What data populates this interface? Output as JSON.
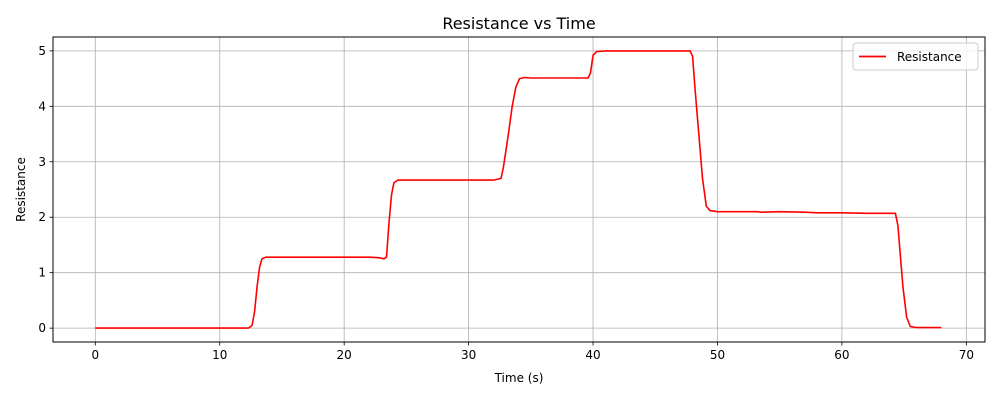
{
  "chart_data": {
    "type": "line",
    "title": "Resistance vs Time",
    "xlabel": "Time (s)",
    "ylabel": "Resistance",
    "xlim": [
      -3.4,
      71.5
    ],
    "ylim": [
      -0.25,
      5.25
    ],
    "xticks": [
      0,
      10,
      20,
      30,
      40,
      50,
      60,
      70
    ],
    "yticks": [
      0,
      1,
      2,
      3,
      4,
      5
    ],
    "grid": true,
    "legend": {
      "placement": "top-right"
    },
    "series": [
      {
        "name": "Resistance",
        "color": "#ff0000",
        "x": [
          0,
          5,
          10,
          12.3,
          12.6,
          12.8,
          13.0,
          13.2,
          13.4,
          13.7,
          15,
          20,
          22,
          22.8,
          23.2,
          23.4,
          23.6,
          23.8,
          24.0,
          24.3,
          25,
          30,
          32.0,
          32.6,
          32.8,
          33.0,
          33.2,
          33.5,
          33.8,
          34.1,
          34.5,
          35,
          37,
          39.6,
          39.8,
          40.0,
          40.3,
          41,
          45,
          47.8,
          48.0,
          48.2,
          48.5,
          48.8,
          49.1,
          49.4,
          50,
          52,
          53.2,
          53.5,
          55,
          57,
          58,
          60,
          62,
          64.3,
          64.5,
          64.7,
          64.9,
          65.2,
          65.5,
          66,
          68
        ],
        "y": [
          0,
          0,
          0,
          0,
          0.05,
          0.3,
          0.75,
          1.1,
          1.25,
          1.28,
          1.28,
          1.28,
          1.28,
          1.27,
          1.25,
          1.28,
          1.9,
          2.4,
          2.62,
          2.67,
          2.67,
          2.67,
          2.67,
          2.7,
          2.9,
          3.2,
          3.5,
          4.0,
          4.35,
          4.5,
          4.52,
          4.51,
          4.51,
          4.51,
          4.6,
          4.92,
          4.99,
          5.0,
          5.0,
          5.0,
          4.9,
          4.3,
          3.5,
          2.7,
          2.2,
          2.12,
          2.1,
          2.1,
          2.1,
          2.09,
          2.1,
          2.09,
          2.08,
          2.08,
          2.07,
          2.07,
          1.85,
          1.3,
          0.75,
          0.2,
          0.03,
          0.01,
          0.01
        ]
      }
    ]
  }
}
